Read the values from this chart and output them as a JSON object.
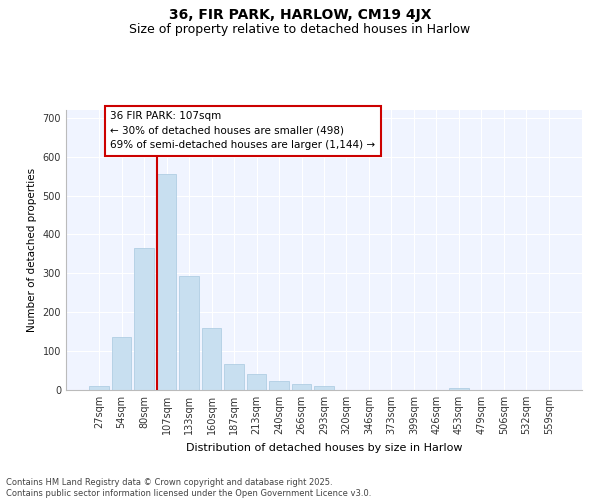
{
  "title1": "36, FIR PARK, HARLOW, CM19 4JX",
  "title2": "Size of property relative to detached houses in Harlow",
  "xlabel": "Distribution of detached houses by size in Harlow",
  "ylabel": "Number of detached properties",
  "categories": [
    "27sqm",
    "54sqm",
    "80sqm",
    "107sqm",
    "133sqm",
    "160sqm",
    "187sqm",
    "213sqm",
    "240sqm",
    "266sqm",
    "293sqm",
    "320sqm",
    "346sqm",
    "373sqm",
    "399sqm",
    "426sqm",
    "453sqm",
    "479sqm",
    "506sqm",
    "532sqm",
    "559sqm"
  ],
  "values": [
    10,
    137,
    365,
    555,
    293,
    160,
    68,
    40,
    22,
    15,
    10,
    0,
    0,
    0,
    0,
    0,
    5,
    0,
    0,
    0,
    0
  ],
  "bar_color": "#c8dff0",
  "bar_edge_color": "#a8c8e0",
  "vline_index": 3,
  "vline_color": "#cc0000",
  "annotation_text": "36 FIR PARK: 107sqm\n← 30% of detached houses are smaller (498)\n69% of semi-detached houses are larger (1,144) →",
  "annotation_box_facecolor": "#ffffff",
  "annotation_box_edgecolor": "#cc0000",
  "bg_color": "#ffffff",
  "plot_bg_color": "#f0f4ff",
  "grid_color": "#ffffff",
  "footer1": "Contains HM Land Registry data © Crown copyright and database right 2025.",
  "footer2": "Contains public sector information licensed under the Open Government Licence v3.0.",
  "ylim": [
    0,
    720
  ],
  "yticks": [
    0,
    100,
    200,
    300,
    400,
    500,
    600,
    700
  ],
  "title_fontsize": 10,
  "subtitle_fontsize": 9,
  "xlabel_fontsize": 8,
  "ylabel_fontsize": 7.5,
  "tick_fontsize": 7,
  "annotation_fontsize": 7.5,
  "footer_fontsize": 6
}
